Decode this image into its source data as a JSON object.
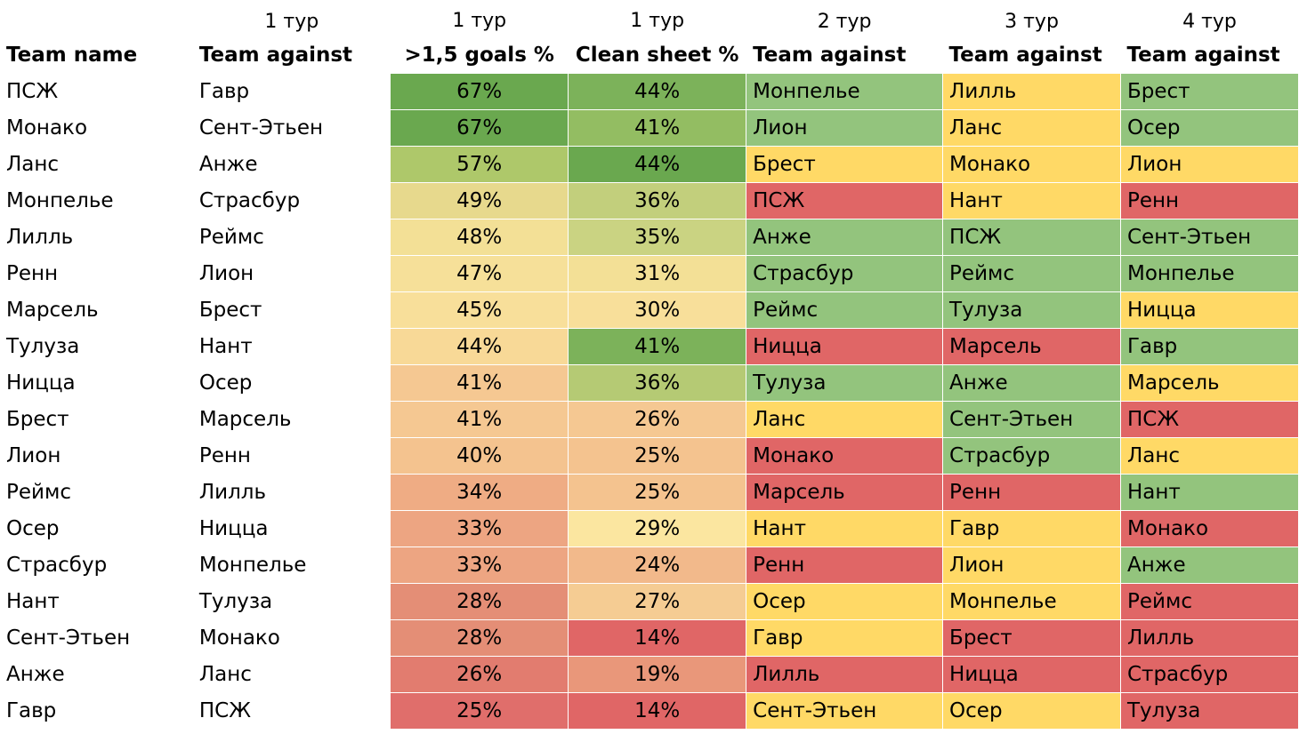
{
  "colors": {
    "green": "#93c47d",
    "yellow": "#ffd966",
    "red": "#e06666"
  },
  "tours": [
    "",
    "1 тур",
    "1 тур",
    "1 тур",
    "2 тур",
    "3 тур",
    "4 тур"
  ],
  "headers": [
    "Team name",
    "Team against",
    ">1,5 goals %",
    "Clean sheet %",
    "Team against",
    "Team against",
    "Team against"
  ],
  "rows": [
    {
      "team": "ПСЖ",
      "t1": "Гавр",
      "goals": "67%",
      "goals_bg": "#6aa84f",
      "clean": "44%",
      "clean_bg": "#7cb25a",
      "t2": "Монпелье",
      "t2_bg": "#93c47d",
      "t3": "Лилль",
      "t3_bg": "#ffd966",
      "t4": "Брест",
      "t4_bg": "#93c47d"
    },
    {
      "team": "Монако",
      "t1": "Сент-Этьен",
      "goals": "67%",
      "goals_bg": "#6aa84f",
      "clean": "41%",
      "clean_bg": "#93bd62",
      "t2": "Лион",
      "t2_bg": "#93c47d",
      "t3": "Ланс",
      "t3_bg": "#ffd966",
      "t4": "Осер",
      "t4_bg": "#93c47d"
    },
    {
      "team": "Ланс",
      "t1": "Анже",
      "goals": "57%",
      "goals_bg": "#aec86a",
      "clean": "44%",
      "clean_bg": "#6aa84f",
      "t2": "Брест",
      "t2_bg": "#ffd966",
      "t3": "Монако",
      "t3_bg": "#ffd966",
      "t4": "Лион",
      "t4_bg": "#ffd966"
    },
    {
      "team": "Монпелье",
      "t1": "Страсбур",
      "goals": "49%",
      "goals_bg": "#e7d98d",
      "clean": "36%",
      "clean_bg": "#c2cf7c",
      "t2": "ПСЖ",
      "t2_bg": "#e06666",
      "t3": "Нант",
      "t3_bg": "#ffd966",
      "t4": "Ренн",
      "t4_bg": "#e06666"
    },
    {
      "team": "Лилль",
      "t1": "Реймс",
      "goals": "48%",
      "goals_bg": "#f3e096",
      "clean": "35%",
      "clean_bg": "#cad382",
      "t2": "Анже",
      "t2_bg": "#93c47d",
      "t3": "ПСЖ",
      "t3_bg": "#93c47d",
      "t4": "Сент-Этьен",
      "t4_bg": "#93c47d"
    },
    {
      "team": "Ренн",
      "t1": "Лион",
      "goals": "47%",
      "goals_bg": "#f6e099",
      "clean": "31%",
      "clean_bg": "#f3e096",
      "t2": "Страсбур",
      "t2_bg": "#93c47d",
      "t3": "Реймс",
      "t3_bg": "#93c47d",
      "t4": "Монпелье",
      "t4_bg": "#93c47d"
    },
    {
      "team": "Марсель",
      "t1": "Брест",
      "goals": "45%",
      "goals_bg": "#f8df9a",
      "clean": "30%",
      "clean_bg": "#f8df9a",
      "t2": "Реймс",
      "t2_bg": "#93c47d",
      "t3": "Тулуза",
      "t3_bg": "#93c47d",
      "t4": "Ницца",
      "t4_bg": "#ffd966"
    },
    {
      "team": "Тулуза",
      "t1": "Нант",
      "goals": "44%",
      "goals_bg": "#f8d997",
      "clean": "41%",
      "clean_bg": "#7cb25a",
      "t2": "Ницца",
      "t2_bg": "#e06666",
      "t3": "Марсель",
      "t3_bg": "#e06666",
      "t4": "Гавр",
      "t4_bg": "#93c47d"
    },
    {
      "team": "Ницца",
      "t1": "Осер",
      "goals": "41%",
      "goals_bg": "#f5c892",
      "clean": "36%",
      "clean_bg": "#b5ca74",
      "t2": "Тулуза",
      "t2_bg": "#93c47d",
      "t3": "Анже",
      "t3_bg": "#93c47d",
      "t4": "Марсель",
      "t4_bg": "#ffd966"
    },
    {
      "team": "Брест",
      "t1": "Марсель",
      "goals": "41%",
      "goals_bg": "#f5c892",
      "clean": "26%",
      "clean_bg": "#f5c892",
      "t2": "Ланс",
      "t2_bg": "#ffd966",
      "t3": "Сент-Этьен",
      "t3_bg": "#93c47d",
      "t4": "ПСЖ",
      "t4_bg": "#e06666"
    },
    {
      "team": "Лион",
      "t1": "Ренн",
      "goals": "40%",
      "goals_bg": "#f4c38f",
      "clean": "25%",
      "clean_bg": "#f4c38f",
      "t2": "Монако",
      "t2_bg": "#e06666",
      "t3": "Страсбур",
      "t3_bg": "#93c47d",
      "t4": "Ланс",
      "t4_bg": "#ffd966"
    },
    {
      "team": "Реймс",
      "t1": "Лилль",
      "goals": "34%",
      "goals_bg": "#efac84",
      "clean": "25%",
      "clean_bg": "#f4c38f",
      "t2": "Марсель",
      "t2_bg": "#e06666",
      "t3": "Ренн",
      "t3_bg": "#e06666",
      "t4": "Нант",
      "t4_bg": "#93c47d"
    },
    {
      "team": "Осер",
      "t1": "Ницца",
      "goals": "33%",
      "goals_bg": "#eda582",
      "clean": "29%",
      "clean_bg": "#fbe6a0",
      "t2": "Нант",
      "t2_bg": "#ffd966",
      "t3": "Гавр",
      "t3_bg": "#ffd966",
      "t4": "Монако",
      "t4_bg": "#e06666"
    },
    {
      "team": "Страсбур",
      "t1": "Монпелье",
      "goals": "33%",
      "goals_bg": "#eda582",
      "clean": "24%",
      "clean_bg": "#f2b98b",
      "t2": "Ренн",
      "t2_bg": "#e06666",
      "t3": "Лион",
      "t3_bg": "#ffd966",
      "t4": "Анже",
      "t4_bg": "#93c47d"
    },
    {
      "team": "Нант",
      "t1": "Тулуза",
      "goals": "28%",
      "goals_bg": "#e48e76",
      "clean": "27%",
      "clean_bg": "#f5cc93",
      "t2": "Осер",
      "t2_bg": "#ffd966",
      "t3": "Монпелье",
      "t3_bg": "#ffd966",
      "t4": "Реймс",
      "t4_bg": "#e06666"
    },
    {
      "team": "Сент-Этьен",
      "t1": "Монако",
      "goals": "28%",
      "goals_bg": "#e48e76",
      "clean": "14%",
      "clean_bg": "#e06666",
      "t2": "Гавр",
      "t2_bg": "#ffd966",
      "t3": "Брест",
      "t3_bg": "#e06666",
      "t4": "Лилль",
      "t4_bg": "#e06666"
    },
    {
      "team": "Анже",
      "t1": "Ланс",
      "goals": "26%",
      "goals_bg": "#e27c6f",
      "clean": "19%",
      "clean_bg": "#e9977a",
      "t2": "Лилль",
      "t2_bg": "#e06666",
      "t3": "Ницца",
      "t3_bg": "#e06666",
      "t4": "Страсбур",
      "t4_bg": "#e06666"
    },
    {
      "team": "Гавр",
      "t1": "ПСЖ",
      "goals": "25%",
      "goals_bg": "#e06e6b",
      "clean": "14%",
      "clean_bg": "#e06666",
      "t2": "Сент-Этьен",
      "t2_bg": "#ffd966",
      "t3": "Осер",
      "t3_bg": "#ffd966",
      "t4": "Тулуза",
      "t4_bg": "#e06666"
    }
  ]
}
